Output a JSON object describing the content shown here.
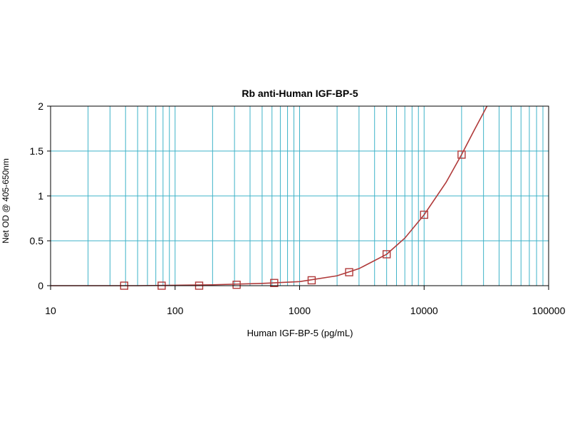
{
  "chart_data": {
    "type": "scatter",
    "title": "Rb anti-Human IGF-BP-5",
    "xlabel": "Human IGF-BP-5 (pg/mL)",
    "ylabel": "Net OD @ 405-650nm",
    "x_scale": "log",
    "xlim": [
      10,
      100000
    ],
    "ylim": [
      0,
      2
    ],
    "x_ticks": [
      10,
      100,
      1000,
      10000,
      100000
    ],
    "x_tick_labels": [
      "10",
      "100",
      "1000",
      "10000",
      "100000"
    ],
    "y_ticks": [
      0,
      0.5,
      1,
      1.5,
      2
    ],
    "y_tick_labels": [
      "0",
      "0.5",
      "1",
      "1.5",
      "2"
    ],
    "grid": true,
    "grid_color": "#3fb3c8",
    "series": [
      {
        "marker": "square",
        "color": "#b03a3a",
        "x": [
          39,
          78,
          156,
          312,
          625,
          1250,
          2500,
          5000,
          10000,
          20000
        ],
        "y": [
          0.0,
          0.0,
          0.0,
          0.01,
          0.03,
          0.06,
          0.15,
          0.35,
          0.79,
          1.46
        ]
      }
    ],
    "fit_curve": {
      "color": "#b03a3a",
      "x": [
        10,
        20,
        50,
        100,
        200,
        500,
        1000,
        2000,
        3000,
        5000,
        7000,
        10000,
        15000,
        20000,
        25000,
        32000
      ],
      "y": [
        0.0,
        0.0,
        0.0,
        0.005,
        0.01,
        0.025,
        0.045,
        0.11,
        0.19,
        0.35,
        0.53,
        0.79,
        1.15,
        1.46,
        1.72,
        2.0
      ]
    }
  }
}
